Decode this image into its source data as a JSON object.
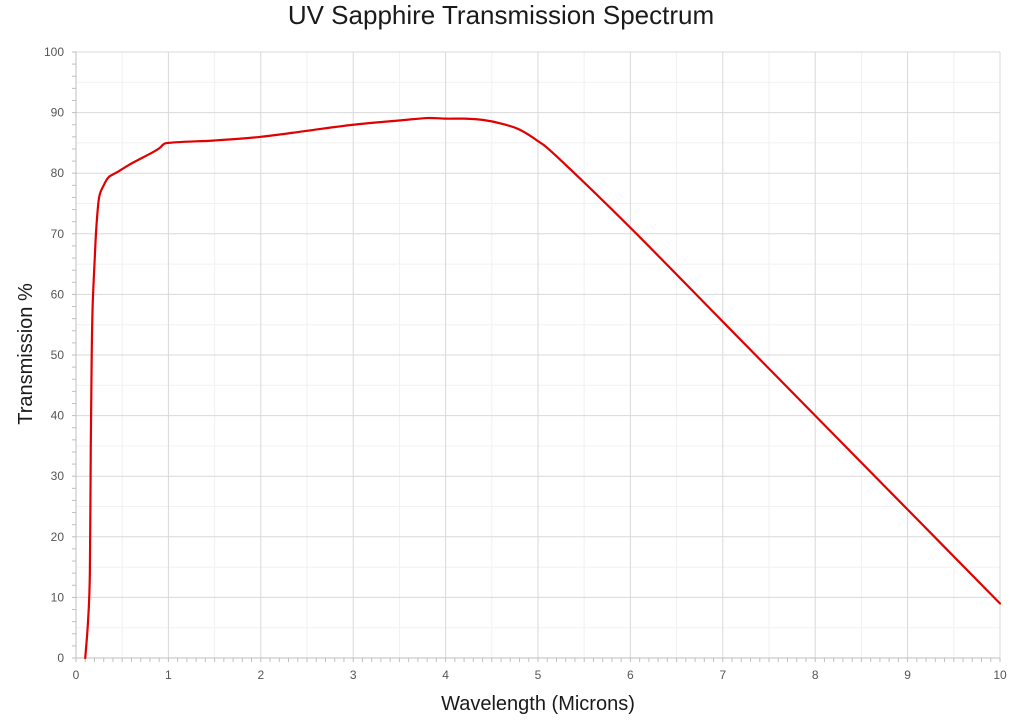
{
  "chart_data": {
    "type": "line",
    "title": "UV Sapphire Transmission Spectrum",
    "xlabel": "Wavelength (Microns)",
    "ylabel": "Transmission %",
    "xlim": [
      0,
      10
    ],
    "ylim": [
      0,
      100
    ],
    "x_ticks": [
      "0",
      "1",
      "2",
      "3",
      "4",
      "5",
      "6",
      "7",
      "8",
      "9",
      "10"
    ],
    "y_ticks": [
      "0",
      "10",
      "20",
      "30",
      "40",
      "50",
      "60",
      "70",
      "80",
      "90",
      "100"
    ],
    "grid": true,
    "legend": "none",
    "series": [
      {
        "color": "#e00000",
        "x": [
          0.1,
          0.13,
          0.15,
          0.16,
          0.17,
          0.18,
          0.2,
          0.22,
          0.25,
          0.3,
          0.35,
          0.4,
          0.45,
          0.6,
          0.8,
          0.9,
          0.95,
          1.0,
          1.2,
          1.5,
          2.0,
          2.5,
          3.0,
          3.5,
          3.8,
          4.0,
          4.2,
          4.4,
          4.6,
          4.8,
          5.0,
          5.2,
          6.0,
          7.0,
          8.0,
          9.0,
          10.0
        ],
        "y": [
          0,
          6,
          14,
          35,
          50,
          58,
          65,
          71,
          76,
          78,
          79.3,
          79.8,
          80.2,
          81.6,
          83.2,
          84.1,
          84.8,
          85.0,
          85.2,
          85.4,
          86.0,
          87.0,
          88.0,
          88.7,
          89.1,
          89.0,
          89.0,
          88.8,
          88.2,
          87.2,
          85.3,
          82.8,
          71.0,
          55.5,
          40.0,
          24.5,
          9.0
        ]
      }
    ]
  }
}
